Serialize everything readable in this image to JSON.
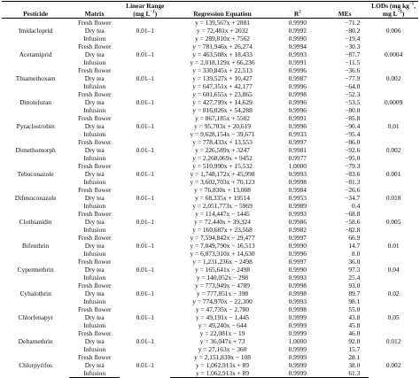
{
  "headers": {
    "pesticide": "Pesticide",
    "matrix": "Matrix",
    "linear_range_l1": "Linear Range",
    "linear_range_l2": "(mg L",
    "linear_range_l2_sup": "−1",
    "linear_range_l2_tail": ")",
    "regression": "Regression Equation",
    "r2": "R",
    "r2_sup": "2",
    "mes": "MEs",
    "lods_l1": "LODs (mg kg",
    "lods_l1_sup": "−1",
    "lods_l1_tail": ",",
    "lods_l2": "mg L",
    "lods_l2_sup": "−1",
    "lods_l2_tail": ")"
  },
  "groups": [
    {
      "pesticide": "Imidacloprid",
      "range": "0.01–1",
      "lod": "0.006",
      "rows": [
        {
          "matrix": "Fresh flower",
          "eq": "y = 139,567x + 2881",
          "r2": "0.9990",
          "me": "−71.2"
        },
        {
          "matrix": "Dry tea",
          "eq": "y = 72,481x + 2032",
          "r2": "0.9992",
          "me": "−80.2"
        },
        {
          "matrix": "Infusion",
          "eq": "y = 289,810x + 7562",
          "r2": "0.9990",
          "me": "−19.4"
        }
      ]
    },
    {
      "pesticide": "Acetamiprid",
      "range": "0.01–1",
      "lod": "0.0004",
      "rows": [
        {
          "matrix": "Fresh flower",
          "eq": "y = 781,946x + 26,274",
          "r2": "0.9994",
          "me": "−30.3"
        },
        {
          "matrix": "Dry tea",
          "eq": "y = 463,508x + 18,433",
          "r2": "0.9993",
          "me": "−87.7"
        },
        {
          "matrix": "Infusion",
          "eq": "y = 2,018,129x + 66,236",
          "r2": "0.9991",
          "me": "−11.5"
        }
      ]
    },
    {
      "pesticide": "Thiamethoxam",
      "range": "0.01–1",
      "lod": "0.002",
      "rows": [
        {
          "matrix": "Fresh flower",
          "eq": "y = 330,845x + 22,513",
          "r2": "0.9996",
          "me": "−36.6"
        },
        {
          "matrix": "Dry tea",
          "eq": "y = 139,527x + 10,427",
          "r2": "0.9987",
          "me": "−77.9"
        },
        {
          "matrix": "Infusion",
          "eq": "y = 647,351x + 42,177",
          "r2": "0.9996",
          "me": "−64.0"
        }
      ]
    },
    {
      "pesticide": "Dinotefuran",
      "range": "0.01–1",
      "lod": "0.0009",
      "rows": [
        {
          "matrix": "Fresh flower",
          "eq": "y = 601,655x + 23,865",
          "r2": "0.9998",
          "me": "−52.3"
        },
        {
          "matrix": "Dry tea",
          "eq": "y = 427,799x + 14,629",
          "r2": "0.9996",
          "me": "−53.5"
        },
        {
          "matrix": "Infusion",
          "eq": "y = 816,026x + 54,288",
          "r2": "0.9996",
          "me": "−80.0"
        }
      ]
    },
    {
      "pesticide": "Pyraclostrobin",
      "range": "0.01–1",
      "lod": "0.01",
      "rows": [
        {
          "matrix": "Fresh flower",
          "eq": "y = 867,185x + 5502",
          "r2": "0.9991",
          "me": "−85.8"
        },
        {
          "matrix": "Dry tea",
          "eq": "y = 95,703x + 20,619",
          "r2": "0.9996",
          "me": "−90.4"
        },
        {
          "matrix": "Infusion",
          "eq": "y = 9,628,154x − 39,671",
          "r2": "0.9933",
          "me": "−95.4"
        }
      ]
    },
    {
      "pesticide": "Dimethomorph",
      "range": "0.01–1",
      "lod": "0.002",
      "rows": [
        {
          "matrix": "Fresh flower",
          "eq": "y = 778,433x + 13,553",
          "r2": "0.9997",
          "me": "−86.0"
        },
        {
          "matrix": "Dry tea",
          "eq": "y = 226,589x + 3247",
          "r2": "0.9981",
          "me": "−92.6"
        },
        {
          "matrix": "Infusion",
          "eq": "y = 2,268,069x + 9452",
          "r2": "0.9977",
          "me": "−95.0"
        }
      ]
    },
    {
      "pesticide": "Tebuconazole",
      "range": "0.01–1",
      "lod": "0.001",
      "rows": [
        {
          "matrix": "Fresh flower",
          "eq": "y = 510,990x + 15,532",
          "r2": "1.0000",
          "me": "−79.3"
        },
        {
          "matrix": "Dry tea",
          "eq": "y = 1,748,172x + 45,998",
          "r2": "0.9993",
          "me": "−83.6"
        },
        {
          "matrix": "Infusion",
          "eq": "y = 3,602,703x + 70,123",
          "r2": "0.9998",
          "me": "−81.3"
        }
      ]
    },
    {
      "pesticide": "Difenoconazole",
      "range": "0.01–1",
      "lod": "0.018",
      "rows": [
        {
          "matrix": "Fresh flower",
          "eq": "y = 76,830x + 13,008",
          "r2": "0.9984",
          "me": "−26.6"
        },
        {
          "matrix": "Dry tea",
          "eq": "y = 68,335x + 19514",
          "r2": "0.9953",
          "me": "−34.7"
        },
        {
          "matrix": "Infusion",
          "eq": "y = 2,051,773x − 5969",
          "r2": "0.9989",
          "me": "0.4"
        }
      ]
    },
    {
      "pesticide": "Clothianidin",
      "range": "0.01–1",
      "lod": "0.005",
      "rows": [
        {
          "matrix": "Fresh flower",
          "eq": "y = 114,447x − 1445",
          "r2": "0.9993",
          "me": "−68.8"
        },
        {
          "matrix": "Dry tea",
          "eq": "y = 72,440x + 39,324",
          "r2": "0.9986",
          "me": "−58.6"
        },
        {
          "matrix": "Infusion",
          "eq": "y = 160,687x + 23,568",
          "r2": "0.9982",
          "me": "−82.8"
        }
      ]
    },
    {
      "pesticide": "Bifenthrin",
      "range": "0.01–1",
      "lod": "0.01",
      "rows": [
        {
          "matrix": "Fresh flower",
          "eq": "y = 7,594,842x − 29,477",
          "r2": "0.9997",
          "me": "66.9"
        },
        {
          "matrix": "Dry tea",
          "eq": "y = 7,049,790x − 16,513",
          "r2": "0.9990",
          "me": "14.7"
        },
        {
          "matrix": "Infusion",
          "eq": "y = 6,873,310x + 14,630",
          "r2": "0.9996",
          "me": "8.0"
        }
      ]
    },
    {
      "pesticide": "Cypermethrin",
      "range": "0.01–1",
      "lod": "0.04",
      "rows": [
        {
          "matrix": "Fresh flower",
          "eq": "y = 1,231,236x − 2498",
          "r2": "0.9997",
          "me": "36.0"
        },
        {
          "matrix": "Dry tea",
          "eq": "y = 165,641x − 2498",
          "r2": "0.9990",
          "me": "97.3"
        },
        {
          "matrix": "Infusion",
          "eq": "y = 140,052x − 298",
          "r2": "0.9993",
          "me": "25.4"
        }
      ]
    },
    {
      "pesticide": "Cyhalothrin",
      "range": "0.01–1",
      "lod": "0.02",
      "rows": [
        {
          "matrix": "Fresh flower",
          "eq": "y = 773,949x − 4789",
          "r2": "0.9998",
          "me": "93.0"
        },
        {
          "matrix": "Dry tea",
          "eq": "y = 777,851x − 398",
          "r2": "0.9998",
          "me": "89.7"
        },
        {
          "matrix": "Infusion",
          "eq": "y = 774,970x − 22,300",
          "r2": "0.9993",
          "me": "98.1"
        }
      ]
    },
    {
      "pesticide": "Chlorfenapyr",
      "range": "0.01–1",
      "lod": "0.05",
      "rows": [
        {
          "matrix": "Fresh flower",
          "eq": "y = 47,735x − 2,780",
          "r2": "0.9998",
          "me": "55.0"
        },
        {
          "matrix": "Dry tea",
          "eq": "y = 49,191x − 1,445",
          "r2": "0.9999",
          "me": "43.8"
        },
        {
          "matrix": "Infusion",
          "eq": "y = 49,240x − 644",
          "r2": "0.9999",
          "me": "45.8"
        }
      ]
    },
    {
      "pesticide": "Deltamethrin",
      "range": "0.01–1",
      "lod": "0.012",
      "rows": [
        {
          "matrix": "Fresh flower",
          "eq": "y = 22,081x − 19",
          "r2": "0.9999",
          "me": "46.0"
        },
        {
          "matrix": "Dry tea",
          "eq": "y = 36,047x + 73",
          "r2": "1.0000",
          "me": "92.0"
        },
        {
          "matrix": "Infusion",
          "eq": "y = 27,163x − 360",
          "r2": "0.9999",
          "me": "15.7"
        }
      ]
    },
    {
      "pesticide": "Chlorpyrifos",
      "range": "0.01–1",
      "lod": "0.002",
      "rows": [
        {
          "matrix": "Fresh flower",
          "eq": "y = 2,151,839x − 108",
          "r2": "0.9999",
          "me": "28.1"
        },
        {
          "matrix": "Dry tea",
          "eq": "y = 1,062,913x + 89",
          "r2": "0.9999",
          "me": "38.0"
        },
        {
          "matrix": "Infusion",
          "eq": "y = 1,062,913x + 89",
          "r2": "0.9999",
          "me": "61.3"
        }
      ]
    }
  ]
}
